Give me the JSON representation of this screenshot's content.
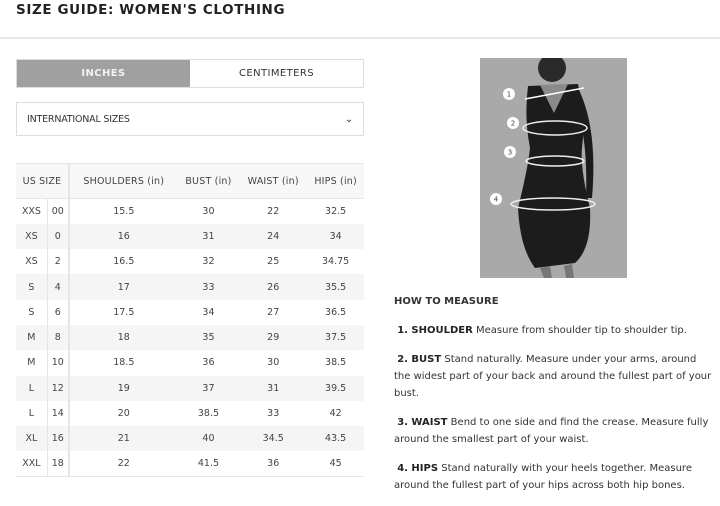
{
  "title": "SIZE GUIDE: WOMEN'S CLOTHING",
  "unit_tabs": {
    "inches": "INCHES",
    "centimeters": "CENTIMETERS",
    "active": "inches",
    "active_color": "#a0a0a0"
  },
  "size_select": {
    "value": "INTERNATIONAL SIZES"
  },
  "table": {
    "headers": [
      "US SIZE",
      "SHOULDERS (in)",
      "BUST (in)",
      "WAIST (in)",
      "HIPS (in)"
    ],
    "rows": [
      [
        "XXS",
        "00",
        "15.5",
        "30",
        "22",
        "32.5"
      ],
      [
        "XS",
        "0",
        "16",
        "31",
        "24",
        "34"
      ],
      [
        "XS",
        "2",
        "16.5",
        "32",
        "25",
        "34.75"
      ],
      [
        "S",
        "4",
        "17",
        "33",
        "26",
        "35.5"
      ],
      [
        "S",
        "6",
        "17.5",
        "34",
        "27",
        "36.5"
      ],
      [
        "M",
        "8",
        "18",
        "35",
        "29",
        "37.5"
      ],
      [
        "M",
        "10",
        "18.5",
        "36",
        "30",
        "38.5"
      ],
      [
        "L",
        "12",
        "19",
        "37",
        "31",
        "39.5"
      ],
      [
        "L",
        "14",
        "20",
        "38.5",
        "33",
        "42"
      ],
      [
        "XL",
        "16",
        "21",
        "40",
        "34.5",
        "43.5"
      ],
      [
        "XXL",
        "18",
        "22",
        "41.5",
        "36",
        "45"
      ]
    ]
  },
  "measure": {
    "heading": "HOW TO MEASURE",
    "steps": [
      {
        "label": "1. SHOULDER",
        "text": " Measure from shoulder tip to shoulder tip."
      },
      {
        "label": "2. BUST",
        "text": "  Stand naturally. Measure under your arms, around the widest part of your back and around the fullest part of your bust."
      },
      {
        "label": "3. WAIST",
        "text": " Bend to one side and find the crease. Measure fully around the smallest part of your waist."
      },
      {
        "label": "4. HIPS",
        "text": " Stand naturally with your heels together. Measure around the fullest part of your hips across both hip bones."
      }
    ]
  },
  "photo": {
    "markers": [
      "1",
      "2",
      "3",
      "4"
    ]
  }
}
